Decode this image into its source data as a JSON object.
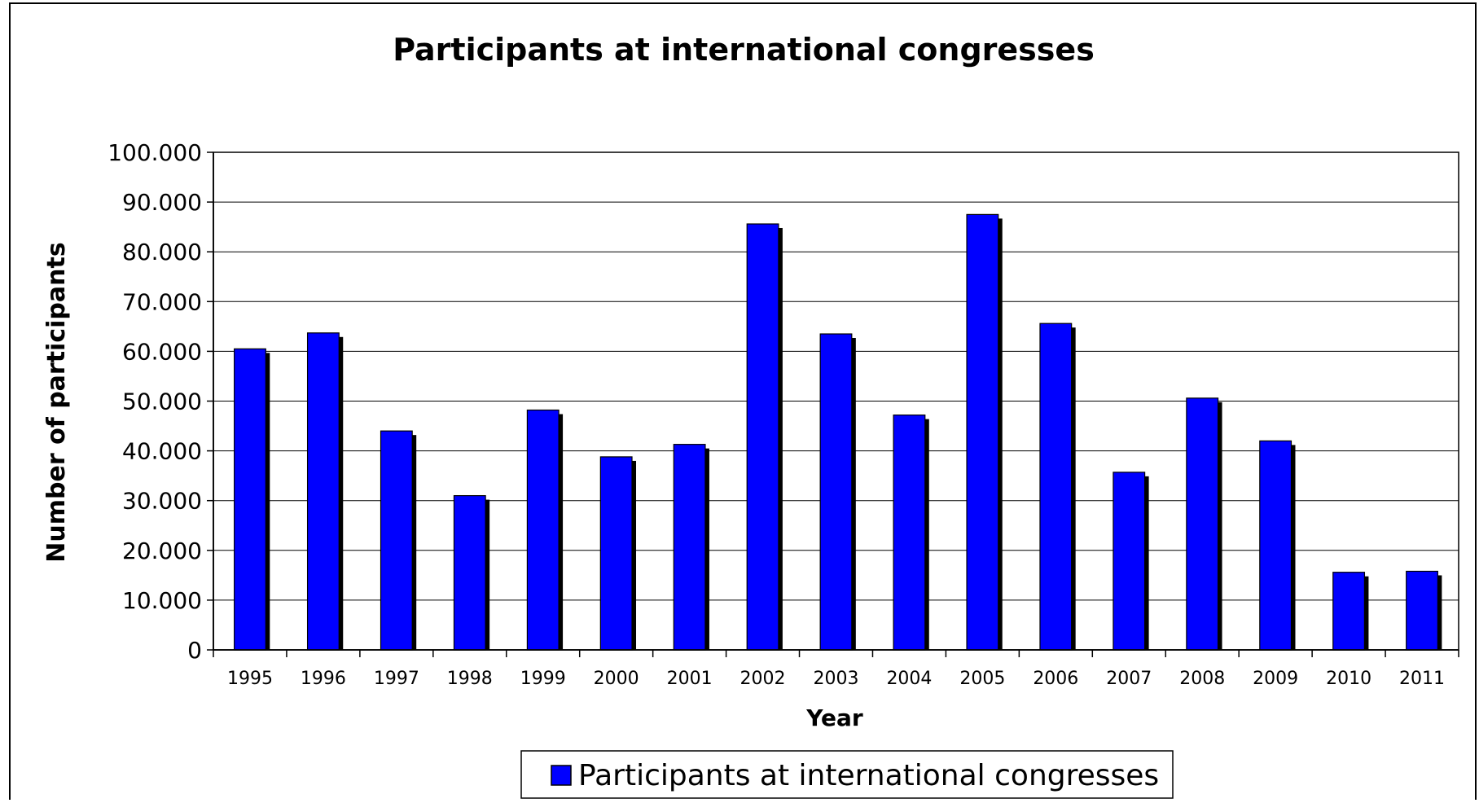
{
  "chart_data": {
    "type": "bar",
    "title": "Participants at international congresses",
    "xlabel": "Year",
    "ylabel": "Number of participants",
    "categories": [
      "1995",
      "1996",
      "1997",
      "1998",
      "1999",
      "2000",
      "2001",
      "2002",
      "2003",
      "2004",
      "2005",
      "2006",
      "2007",
      "2008",
      "2009",
      "2010",
      "2011"
    ],
    "series": [
      {
        "name": "Participants at international congresses",
        "values": [
          60500,
          63700,
          44000,
          31000,
          48200,
          38800,
          41300,
          85600,
          63500,
          47200,
          87500,
          65600,
          35700,
          50600,
          42000,
          15600,
          15800
        ]
      }
    ],
    "ylim": [
      0,
      100000
    ],
    "y_ticks": [
      0,
      10000,
      20000,
      30000,
      40000,
      50000,
      60000,
      70000,
      80000,
      90000,
      100000
    ],
    "y_tick_labels": [
      "0",
      "10.000",
      "20.000",
      "30.000",
      "40.000",
      "50.000",
      "60.000",
      "70.000",
      "80.000",
      "90.000",
      "100.000"
    ],
    "grid": true,
    "legend_position": "bottom",
    "colors": {
      "bar": "#0000ff",
      "bar_shadow": "#000000",
      "grid": "#000000",
      "frame": "#000000",
      "background": "#ffffff"
    }
  }
}
